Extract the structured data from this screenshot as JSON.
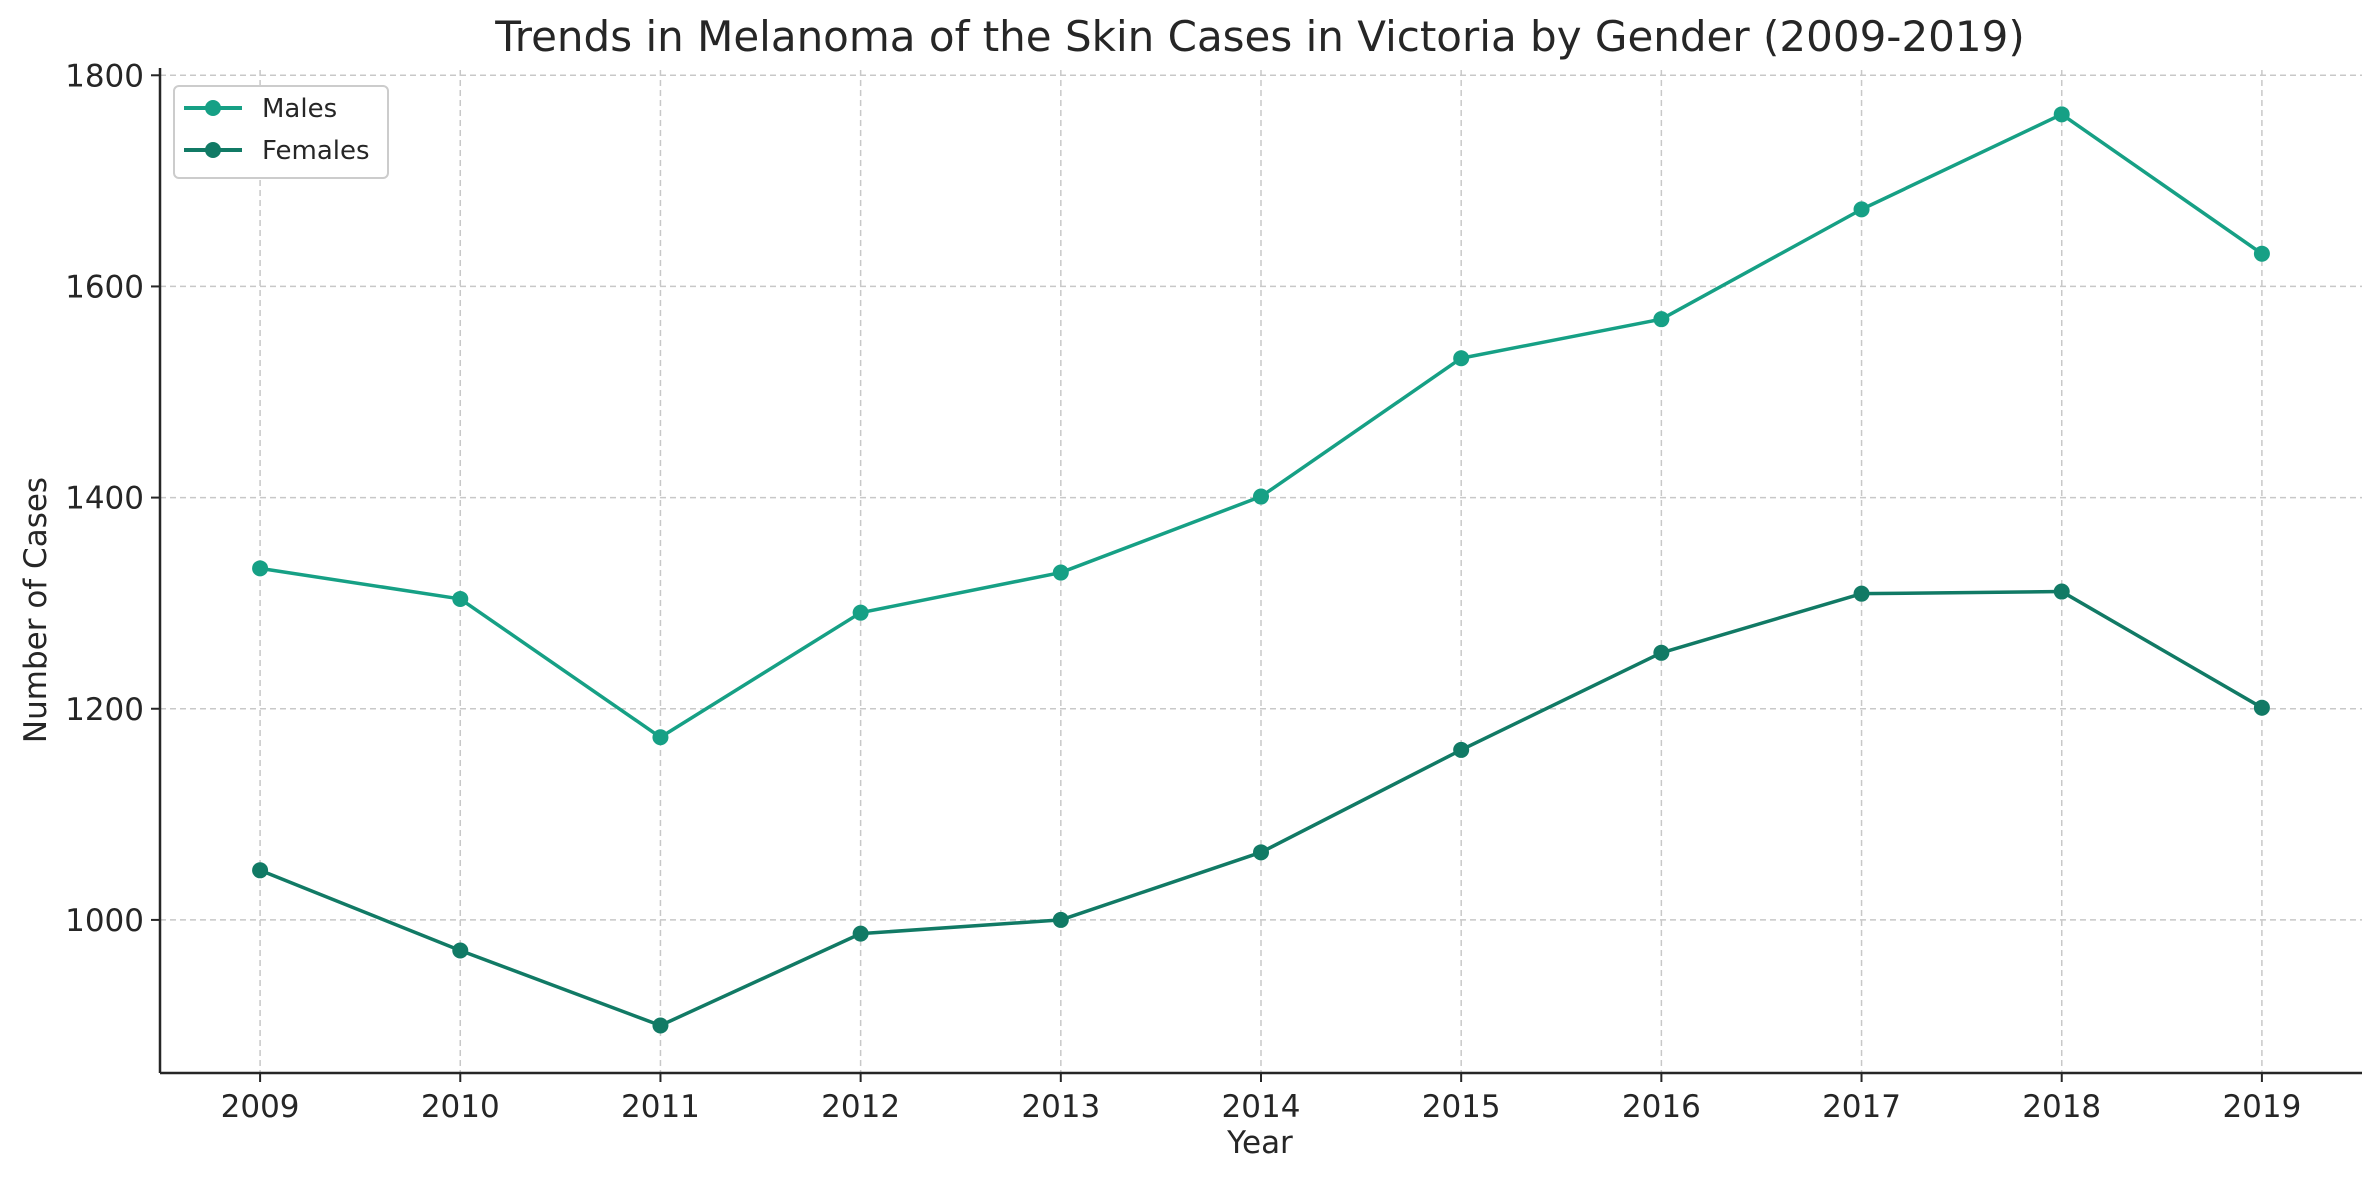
{
  "chart_data": {
    "type": "line",
    "title": "Trends in Melanoma of the Skin Cases in Victoria by Gender (2009-2019)",
    "xlabel": "Year",
    "ylabel": "Number of Cases",
    "x": [
      2009,
      2010,
      2011,
      2012,
      2013,
      2014,
      2015,
      2016,
      2017,
      2018,
      2019
    ],
    "ylim": [
      855,
      1805
    ],
    "yticks": [
      1000,
      1200,
      1400,
      1600,
      1800
    ],
    "grid": true,
    "legend_position": "top-left",
    "series": [
      {
        "name": "Males",
        "color": "#16a085",
        "values": [
          1333,
          1304,
          1173,
          1291,
          1329,
          1401,
          1532,
          1569,
          1673,
          1763,
          1631
        ]
      },
      {
        "name": "Females",
        "color": "#117a65",
        "values": [
          1047,
          971,
          900,
          987,
          1000,
          1064,
          1161,
          1253,
          1309,
          1311,
          1201
        ]
      }
    ]
  }
}
